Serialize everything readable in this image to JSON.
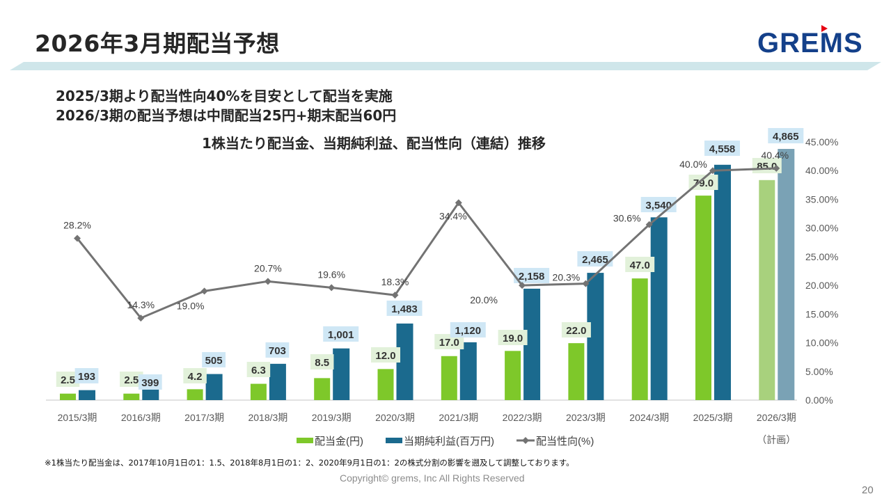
{
  "header": {
    "title": "2026年3月期配当予想",
    "logo_text": "GREMS"
  },
  "messages": [
    "2025/3期より配当性向40%を目安として配当を実施",
    "2026/3期の配当予想は中間配当25円+期末配当60円"
  ],
  "footer": {
    "note": "※1株当たり配当金は、2017年10月1日の1：1.5、2018年8月1日の1：2、2020年9月1日の1：2の株式分割の影響を遡及して調整しております。",
    "copyright": "Copyright© grems, Inc All Rights Reserved",
    "page_number": "20"
  },
  "colors": {
    "dividend": "#7ec82a",
    "dividend_plan": "#a8d17d",
    "net_income": "#1b6a8e",
    "net_income_plan": "#7aa2b5",
    "payout_line": "#737373",
    "dividend_label_bg": "#e2f1da",
    "net_income_label_bg": "#cfe7f5",
    "band": "#cfe6ea",
    "logo": "#14408a",
    "logo_accent": "#e60012"
  },
  "chart_data": {
    "type": "bar",
    "title": "1株当たり配当金、当期純利益、配当性向（連結）推移",
    "categories": [
      "2015/3期",
      "2016/3期",
      "2017/3期",
      "2018/3期",
      "2019/3期",
      "2020/3期",
      "2021/3期",
      "2022/3期",
      "2023/3期",
      "2024/3期",
      "2025/3期",
      "2026/3期"
    ],
    "category_sublabels": [
      "",
      "",
      "",
      "",
      "",
      "",
      "",
      "",
      "",
      "",
      "",
      "（計画）"
    ],
    "planned_index": 11,
    "series": [
      {
        "name": "配当金(円)",
        "kind": "bar",
        "axis": "left-hidden",
        "values": [
          2.5,
          2.5,
          4.2,
          6.3,
          8.5,
          12.0,
          17.0,
          19.0,
          22.0,
          47.0,
          79.0,
          85.0
        ],
        "labels": [
          "2.5",
          "2.5",
          "4.2",
          "6.3",
          "8.5",
          "12.0",
          "17.0",
          "19.0",
          "22.0",
          "47.0",
          "79.0",
          "85.0"
        ]
      },
      {
        "name": "当期純利益(百万円)",
        "kind": "bar",
        "axis": "left-hidden",
        "values": [
          193,
          399,
          505,
          703,
          1001,
          1483,
          1120,
          2158,
          2465,
          3540,
          4558,
          4865
        ],
        "labels": [
          "193",
          "399",
          "505",
          "703",
          "1,001",
          "1,483",
          "1,120",
          "2,158",
          "2,465",
          "3,540",
          "4,558",
          "4,865"
        ]
      },
      {
        "name": "配当性向(%)",
        "kind": "line",
        "axis": "right",
        "values": [
          28.2,
          14.3,
          19.0,
          20.7,
          19.6,
          18.3,
          34.4,
          20.0,
          20.3,
          30.6,
          40.0,
          40.4
        ],
        "labels": [
          "28.2%",
          "14.3%",
          "19.0%",
          "20.7%",
          "19.6%",
          "18.3%",
          "34.4%",
          "20.0%",
          "20.3%",
          "30.6%",
          "40.0%",
          "40.4%"
        ]
      }
    ],
    "y_right": {
      "ylim": [
        0,
        45
      ],
      "ticks": [
        "0.00%",
        "5.00%",
        "10.00%",
        "15.00%",
        "20.00%",
        "25.00%",
        "30.00%",
        "35.00%",
        "40.00%",
        "45.00%"
      ],
      "tick_values": [
        0,
        5,
        10,
        15,
        20,
        25,
        30,
        35,
        40,
        45
      ]
    },
    "legend": {
      "position": "bottom",
      "items": [
        "配当金(円)",
        "当期純利益(百万円)",
        "配当性向(%)"
      ]
    },
    "grid": false
  }
}
